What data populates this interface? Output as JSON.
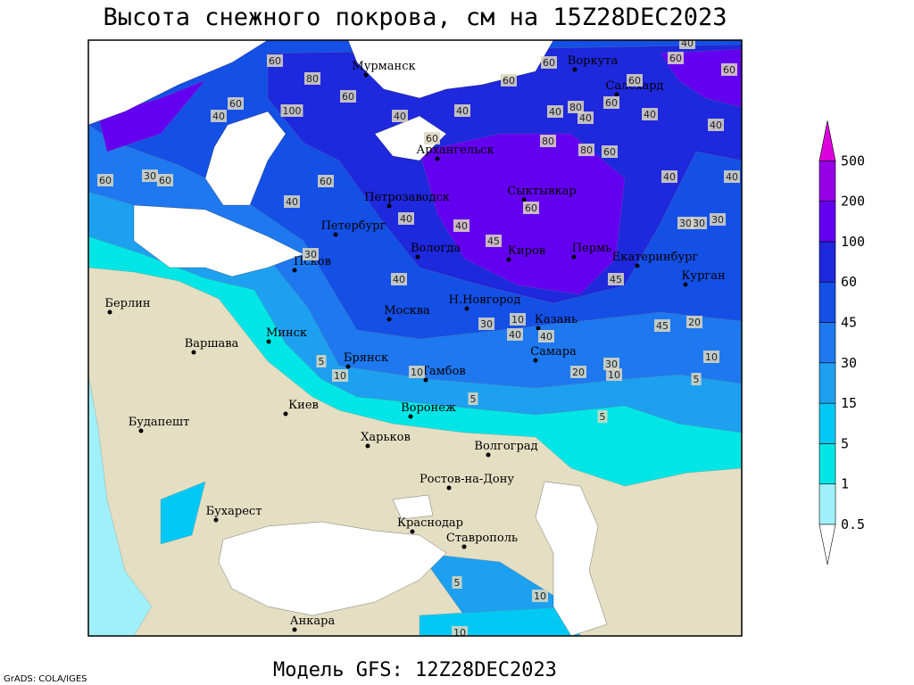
{
  "header": {
    "title": "Высота снежного покрова, см на 15Z28DEC2023"
  },
  "map": {
    "cities": [
      "Мурманск",
      "Воркута",
      "Салехард",
      "Архангельск",
      "Сыктывкар",
      "Петрозаводск",
      "Петербург",
      "Вологда",
      "Киров",
      "Пермь",
      "Екатеринбург",
      "Курган",
      "Псков",
      "Н.Новгород",
      "Москва",
      "Казань",
      "Берлин",
      "Минск",
      "Варшава",
      "Брянск",
      "Самара",
      "Тамбов",
      "Воронеж",
      "Киев",
      "Будапешт",
      "Харьков",
      "Волгоград",
      "Ростов-на-Дону",
      "Бухарест",
      "Краснодар",
      "Ставрополь",
      "Анкара"
    ],
    "contour_labels": [
      80,
      60,
      60,
      40,
      60,
      100,
      40,
      60,
      40,
      60,
      60,
      40,
      80,
      40,
      60,
      60,
      40,
      60,
      40,
      60,
      40,
      80,
      80,
      60,
      40,
      40,
      30,
      30,
      30,
      60,
      30,
      60,
      60,
      40,
      40,
      40,
      45,
      60,
      30,
      40,
      45,
      10,
      30,
      40,
      40,
      45,
      20,
      10,
      5,
      5,
      10,
      10,
      5,
      20,
      30,
      10,
      5,
      10,
      10,
      5
    ]
  },
  "colorbar": {
    "levels": [
      0.5,
      1,
      5,
      15,
      30,
      45,
      60,
      100,
      200,
      500
    ],
    "colors": [
      "#ffffff",
      "#a0f0fa",
      "#00e6e6",
      "#00c8f5",
      "#1ea0f0",
      "#1e78f0",
      "#1450e6",
      "#1e28dc",
      "#6400f0",
      "#9600e6",
      "#dc00dc"
    ]
  },
  "footer": {
    "model": "Модель GFS: 12Z28DEC2023",
    "credit": "GrADS: COLA/IGES"
  }
}
